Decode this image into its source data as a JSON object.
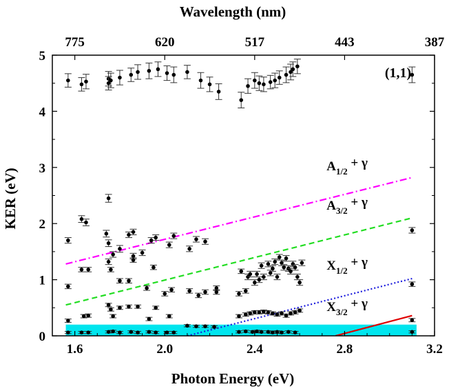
{
  "chart_data": {
    "type": "scatter",
    "xlabel": "Photon Energy (eV)",
    "ylabel": "KER (eV)",
    "top_xlabel": "Wavelength (nm)",
    "xlim": [
      1.5,
      3.2
    ],
    "ylim": [
      0,
      5
    ],
    "xticks": [
      "1.6",
      "2.0",
      "2.4",
      "2.8",
      "3.2"
    ],
    "yticks": [
      "0",
      "1",
      "2",
      "3",
      "4",
      "5"
    ],
    "top_ticks": [
      {
        "label": "775",
        "energy": 1.6
      },
      {
        "label": "620",
        "energy": 2.0
      },
      {
        "label": "517",
        "energy": 2.4
      },
      {
        "label": "443",
        "energy": 2.8
      },
      {
        "label": "387",
        "energy": 3.2
      }
    ],
    "annotation": "(1,1)",
    "shaded_band": {
      "y0": 0,
      "y1": 0.2,
      "x0": 1.56,
      "x1": 3.12,
      "color": "#00e5ee"
    },
    "lines": [
      {
        "label_main": "A",
        "label_sub": "1/2",
        "label_tail": " + γ",
        "color": "#ff00ff",
        "style": "dashdot",
        "points": [
          [
            1.56,
            1.28
          ],
          [
            3.1,
            2.82
          ]
        ],
        "label_at": [
          2.72,
          2.95
        ]
      },
      {
        "label_main": "A",
        "label_sub": "3/2",
        "label_tail": " + γ",
        "color": "#22dd22",
        "style": "dashed",
        "points": [
          [
            1.56,
            0.55
          ],
          [
            3.1,
            2.1
          ]
        ],
        "label_at": [
          2.72,
          2.25
        ]
      },
      {
        "label_main": "X",
        "label_sub": "1/2",
        "label_tail": " + γ",
        "color": "#1a1adc",
        "style": "dotted",
        "points": [
          [
            2.1,
            0.0
          ],
          [
            3.1,
            1.02
          ]
        ],
        "label_at": [
          2.72,
          1.18
        ]
      },
      {
        "label_main": "X",
        "label_sub": "3/2",
        "label_tail": " + γ",
        "color": "#e00000",
        "style": "solid",
        "points": [
          [
            2.76,
            0.0
          ],
          [
            3.1,
            0.36
          ]
        ],
        "label_at": [
          2.72,
          0.44
        ]
      }
    ],
    "series": [
      {
        "marker": "circle-errorbar",
        "color": "#000000",
        "points": [
          [
            1.57,
            4.55,
            0.12
          ],
          [
            1.63,
            4.48,
            0.12
          ],
          [
            1.65,
            4.53,
            0.13
          ],
          [
            1.75,
            4.58,
            0.13
          ],
          [
            1.75,
            4.5,
            0.12
          ],
          [
            1.76,
            4.55,
            0.13
          ],
          [
            1.8,
            4.6,
            0.13
          ],
          [
            1.85,
            4.65,
            0.12
          ],
          [
            1.88,
            4.7,
            0.13
          ],
          [
            1.93,
            4.72,
            0.14
          ],
          [
            1.97,
            4.75,
            0.13
          ],
          [
            2.01,
            4.68,
            0.13
          ],
          [
            2.04,
            4.65,
            0.14
          ],
          [
            2.1,
            4.7,
            0.12
          ],
          [
            2.16,
            4.55,
            0.14
          ],
          [
            2.2,
            4.48,
            0.13
          ],
          [
            2.24,
            4.35,
            0.14
          ],
          [
            2.34,
            4.2,
            0.14
          ],
          [
            2.37,
            4.45,
            0.13
          ],
          [
            2.4,
            4.55,
            0.14
          ],
          [
            2.42,
            4.5,
            0.13
          ],
          [
            2.44,
            4.48,
            0.13
          ],
          [
            2.47,
            4.52,
            0.12
          ],
          [
            2.49,
            4.55,
            0.13
          ],
          [
            2.51,
            4.6,
            0.12
          ],
          [
            2.54,
            4.65,
            0.14
          ],
          [
            2.56,
            4.7,
            0.14
          ],
          [
            2.57,
            4.75,
            0.13
          ],
          [
            2.59,
            4.8,
            0.13
          ],
          [
            3.1,
            4.65,
            0.14
          ],
          [
            1.57,
            1.7,
            0.05
          ],
          [
            1.63,
            2.08,
            0.06
          ],
          [
            1.65,
            2.02,
            0.06
          ],
          [
            1.75,
            2.45,
            0.07
          ],
          [
            1.74,
            1.82,
            0.06
          ],
          [
            1.75,
            1.65,
            0.06
          ],
          [
            1.77,
            1.45,
            0.05
          ],
          [
            1.8,
            1.55,
            0.06
          ],
          [
            1.84,
            1.8,
            0.05
          ],
          [
            1.86,
            1.85,
            0.05
          ],
          [
            1.86,
            1.42,
            0.05
          ],
          [
            1.9,
            1.48,
            0.05
          ],
          [
            1.94,
            1.7,
            0.05
          ],
          [
            1.96,
            1.75,
            0.05
          ],
          [
            2.02,
            1.62,
            0.05
          ],
          [
            2.04,
            1.78,
            0.05
          ],
          [
            2.11,
            1.55,
            0.05
          ],
          [
            2.14,
            1.72,
            0.05
          ],
          [
            2.18,
            1.68,
            0.05
          ],
          [
            3.1,
            1.88,
            0.05
          ],
          [
            1.57,
            0.88,
            0.04
          ],
          [
            1.63,
            1.18,
            0.04
          ],
          [
            1.66,
            1.18,
            0.04
          ],
          [
            1.75,
            1.32,
            0.05
          ],
          [
            1.76,
            1.18,
            0.04
          ],
          [
            1.8,
            0.98,
            0.04
          ],
          [
            1.84,
            0.98,
            0.04
          ],
          [
            1.86,
            1.35,
            0.04
          ],
          [
            1.92,
            0.85,
            0.04
          ],
          [
            1.95,
            1.22,
            0.04
          ],
          [
            2.0,
            0.75,
            0.04
          ],
          [
            2.03,
            0.82,
            0.04
          ],
          [
            2.11,
            0.8,
            0.04
          ],
          [
            2.15,
            0.72,
            0.04
          ],
          [
            2.18,
            0.78,
            0.04
          ],
          [
            2.23,
            0.85,
            0.04
          ],
          [
            2.23,
            0.78,
            0.04
          ],
          [
            2.33,
            0.75,
            0.04
          ],
          [
            2.34,
            1.15,
            0.04
          ],
          [
            2.36,
            0.8,
            0.04
          ],
          [
            2.37,
            1.05,
            0.05
          ],
          [
            2.38,
            1.1,
            0.05
          ],
          [
            2.4,
            0.95,
            0.05
          ],
          [
            2.41,
            1.1,
            0.05
          ],
          [
            2.42,
            1.0,
            0.05
          ],
          [
            2.43,
            1.25,
            0.05
          ],
          [
            2.44,
            1.05,
            0.05
          ],
          [
            2.46,
            1.28,
            0.05
          ],
          [
            2.47,
            1.12,
            0.05
          ],
          [
            2.48,
            1.2,
            0.05
          ],
          [
            2.49,
            1.32,
            0.05
          ],
          [
            2.5,
            1.05,
            0.05
          ],
          [
            2.51,
            1.4,
            0.05
          ],
          [
            2.52,
            1.3,
            0.05
          ],
          [
            2.53,
            1.22,
            0.05
          ],
          [
            2.54,
            1.38,
            0.05
          ],
          [
            2.55,
            1.2,
            0.05
          ],
          [
            2.56,
            1.15,
            0.05
          ],
          [
            2.57,
            1.28,
            0.05
          ],
          [
            2.58,
            1.22,
            0.05
          ],
          [
            2.59,
            1.05,
            0.05
          ],
          [
            2.6,
            0.95,
            0.05
          ],
          [
            2.61,
            1.3,
            0.05
          ],
          [
            3.1,
            0.92,
            0.04
          ],
          [
            1.57,
            0.27,
            0.03
          ],
          [
            1.64,
            0.35,
            0.03
          ],
          [
            1.66,
            0.36,
            0.03
          ],
          [
            1.75,
            0.55,
            0.03
          ],
          [
            1.76,
            0.47,
            0.03
          ],
          [
            1.77,
            0.35,
            0.03
          ],
          [
            1.8,
            0.5,
            0.03
          ],
          [
            1.84,
            0.52,
            0.03
          ],
          [
            1.88,
            0.52,
            0.03
          ],
          [
            1.93,
            0.3,
            0.03
          ],
          [
            1.96,
            0.5,
            0.03
          ],
          [
            2.02,
            0.35,
            0.03
          ],
          [
            2.33,
            0.35,
            0.03
          ],
          [
            2.36,
            0.38,
            0.03
          ],
          [
            2.38,
            0.4,
            0.03
          ],
          [
            2.4,
            0.42,
            0.03
          ],
          [
            2.42,
            0.42,
            0.03
          ],
          [
            2.44,
            0.43,
            0.03
          ],
          [
            2.46,
            0.42,
            0.03
          ],
          [
            2.48,
            0.4,
            0.03
          ],
          [
            2.5,
            0.38,
            0.03
          ],
          [
            2.52,
            0.4,
            0.03
          ],
          [
            2.54,
            0.36,
            0.03
          ],
          [
            2.56,
            0.4,
            0.03
          ],
          [
            2.58,
            0.42,
            0.03
          ],
          [
            2.6,
            0.45,
            0.03
          ],
          [
            3.1,
            0.28,
            0.03
          ],
          [
            1.57,
            0.06,
            0.02
          ],
          [
            1.63,
            0.06,
            0.02
          ],
          [
            1.66,
            0.06,
            0.02
          ],
          [
            1.75,
            0.07,
            0.02
          ],
          [
            1.77,
            0.08,
            0.02
          ],
          [
            1.8,
            0.06,
            0.02
          ],
          [
            1.85,
            0.07,
            0.02
          ],
          [
            1.88,
            0.06,
            0.02
          ],
          [
            1.93,
            0.07,
            0.02
          ],
          [
            1.96,
            0.06,
            0.02
          ],
          [
            2.01,
            0.06,
            0.02
          ],
          [
            2.04,
            0.06,
            0.02
          ],
          [
            2.1,
            0.18,
            0.02
          ],
          [
            2.14,
            0.17,
            0.02
          ],
          [
            2.18,
            0.17,
            0.02
          ],
          [
            2.22,
            0.16,
            0.02
          ],
          [
            2.33,
            0.07,
            0.02
          ],
          [
            2.36,
            0.08,
            0.02
          ],
          [
            2.39,
            0.07,
            0.02
          ],
          [
            2.41,
            0.08,
            0.02
          ],
          [
            2.43,
            0.07,
            0.02
          ],
          [
            2.46,
            0.07,
            0.02
          ],
          [
            2.48,
            0.06,
            0.02
          ],
          [
            2.5,
            0.07,
            0.02
          ],
          [
            2.52,
            0.06,
            0.02
          ],
          [
            2.55,
            0.07,
            0.02
          ],
          [
            2.58,
            0.06,
            0.02
          ],
          [
            3.1,
            0.07,
            0.02
          ]
        ]
      }
    ]
  }
}
